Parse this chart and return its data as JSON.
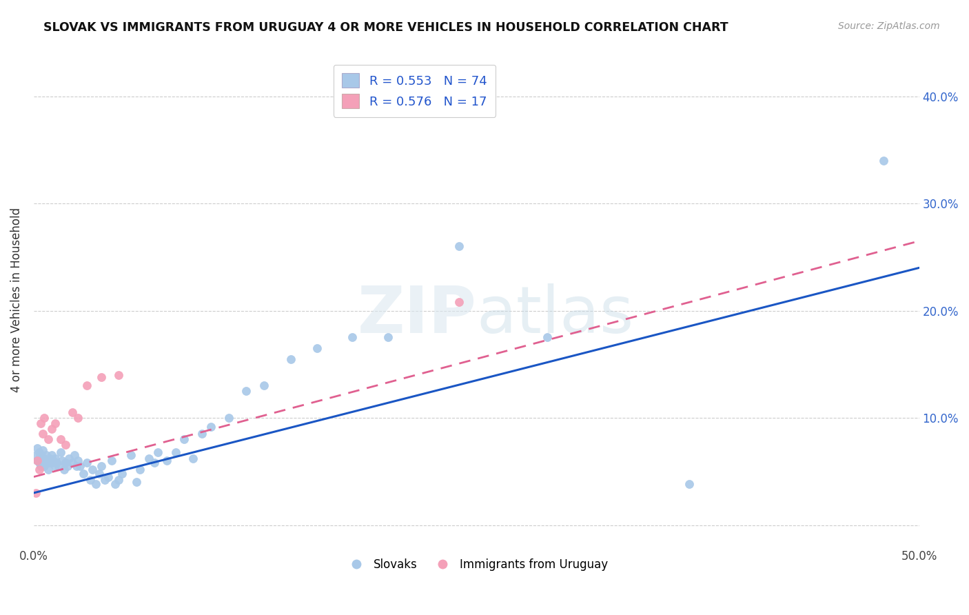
{
  "title": "SLOVAK VS IMMIGRANTS FROM URUGUAY 4 OR MORE VEHICLES IN HOUSEHOLD CORRELATION CHART",
  "source": "Source: ZipAtlas.com",
  "ylabel": "4 or more Vehicles in Household",
  "xlim": [
    0.0,
    0.5
  ],
  "ylim": [
    -0.02,
    0.44
  ],
  "xtick_positions": [
    0.0,
    0.1,
    0.2,
    0.3,
    0.4,
    0.5
  ],
  "xtick_labels": [
    "0.0%",
    "",
    "",
    "",
    "",
    "50.0%"
  ],
  "ytick_positions": [
    0.0,
    0.1,
    0.2,
    0.3,
    0.4
  ],
  "ytick_labels_right": [
    "",
    "10.0%",
    "20.0%",
    "30.0%",
    "40.0%"
  ],
  "legend_labels": [
    "R = 0.553   N = 74",
    "R = 0.576   N = 17"
  ],
  "bottom_legend": [
    "Slovaks",
    "Immigrants from Uruguay"
  ],
  "slovak_color": "#a8c8e8",
  "uruguay_color": "#f4a0b8",
  "slovak_line_color": "#1a56c4",
  "uruguay_line_color": "#e06090",
  "watermark": "ZIPatlas",
  "slovak_x": [
    0.001,
    0.002,
    0.002,
    0.003,
    0.003,
    0.003,
    0.004,
    0.004,
    0.005,
    0.005,
    0.005,
    0.006,
    0.006,
    0.007,
    0.007,
    0.007,
    0.008,
    0.008,
    0.009,
    0.009,
    0.01,
    0.01,
    0.011,
    0.012,
    0.012,
    0.013,
    0.014,
    0.015,
    0.016,
    0.017,
    0.018,
    0.019,
    0.02,
    0.022,
    0.023,
    0.024,
    0.025,
    0.026,
    0.028,
    0.03,
    0.032,
    0.033,
    0.035,
    0.037,
    0.038,
    0.04,
    0.042,
    0.044,
    0.046,
    0.048,
    0.05,
    0.055,
    0.058,
    0.06,
    0.065,
    0.068,
    0.07,
    0.075,
    0.08,
    0.085,
    0.09,
    0.095,
    0.1,
    0.11,
    0.12,
    0.13,
    0.145,
    0.16,
    0.18,
    0.2,
    0.24,
    0.29,
    0.37,
    0.48
  ],
  "slovak_y": [
    0.065,
    0.06,
    0.072,
    0.058,
    0.062,
    0.068,
    0.055,
    0.065,
    0.06,
    0.058,
    0.07,
    0.062,
    0.055,
    0.06,
    0.058,
    0.065,
    0.052,
    0.06,
    0.058,
    0.062,
    0.065,
    0.058,
    0.06,
    0.055,
    0.062,
    0.058,
    0.055,
    0.068,
    0.06,
    0.052,
    0.058,
    0.055,
    0.062,
    0.058,
    0.065,
    0.055,
    0.06,
    0.055,
    0.048,
    0.058,
    0.042,
    0.052,
    0.038,
    0.048,
    0.055,
    0.042,
    0.045,
    0.06,
    0.038,
    0.042,
    0.048,
    0.065,
    0.04,
    0.052,
    0.062,
    0.058,
    0.068,
    0.06,
    0.068,
    0.08,
    0.062,
    0.085,
    0.092,
    0.1,
    0.125,
    0.13,
    0.155,
    0.165,
    0.175,
    0.175,
    0.26,
    0.175,
    0.038,
    0.34
  ],
  "uruguay_x": [
    0.001,
    0.002,
    0.003,
    0.004,
    0.005,
    0.006,
    0.008,
    0.01,
    0.012,
    0.015,
    0.018,
    0.022,
    0.025,
    0.03,
    0.038,
    0.048,
    0.24
  ],
  "uruguay_y": [
    0.03,
    0.06,
    0.052,
    0.095,
    0.085,
    0.1,
    0.08,
    0.09,
    0.095,
    0.08,
    0.075,
    0.105,
    0.1,
    0.13,
    0.138,
    0.14,
    0.208
  ],
  "slovak_line_x": [
    0.0,
    0.5
  ],
  "slovak_line_y": [
    0.03,
    0.24
  ],
  "uruguay_line_x": [
    0.0,
    0.5
  ],
  "uruguay_line_y": [
    0.045,
    0.265
  ]
}
